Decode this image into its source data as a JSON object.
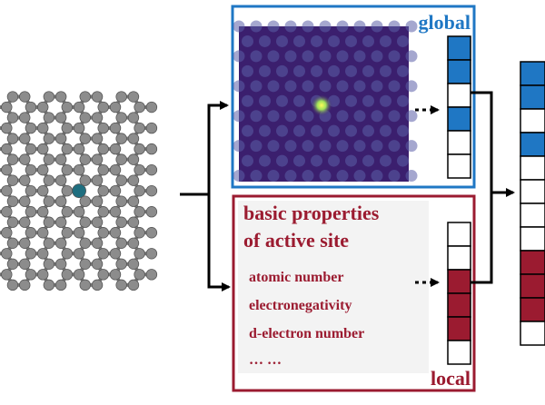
{
  "global_panel": {
    "label": "global",
    "color": "#1f77c4",
    "heatmap_bg": "#3b1f6e",
    "vector_cells": [
      "blue",
      "blue",
      "white",
      "blue",
      "white",
      "white"
    ]
  },
  "local_panel": {
    "label": "local",
    "color": "#9b1b30",
    "heading_line1": "basic properties",
    "heading_line2": "of active site",
    "properties": [
      "atomic number",
      "electronegativity",
      "d-electron number",
      "… …"
    ],
    "vector_cells": [
      "white",
      "white",
      "red",
      "red",
      "red",
      "white"
    ]
  },
  "combined_vector": {
    "cells": [
      "blue",
      "blue",
      "white",
      "blue",
      "white",
      "white",
      "white",
      "white",
      "red",
      "red",
      "red",
      "white"
    ]
  },
  "structure": {
    "carbon_color": "#8c8c8c",
    "dopant_color": "#1f6f80"
  },
  "colors": {
    "blue": "#1f77c4",
    "red": "#9b1b30",
    "white": "#ffffff"
  }
}
